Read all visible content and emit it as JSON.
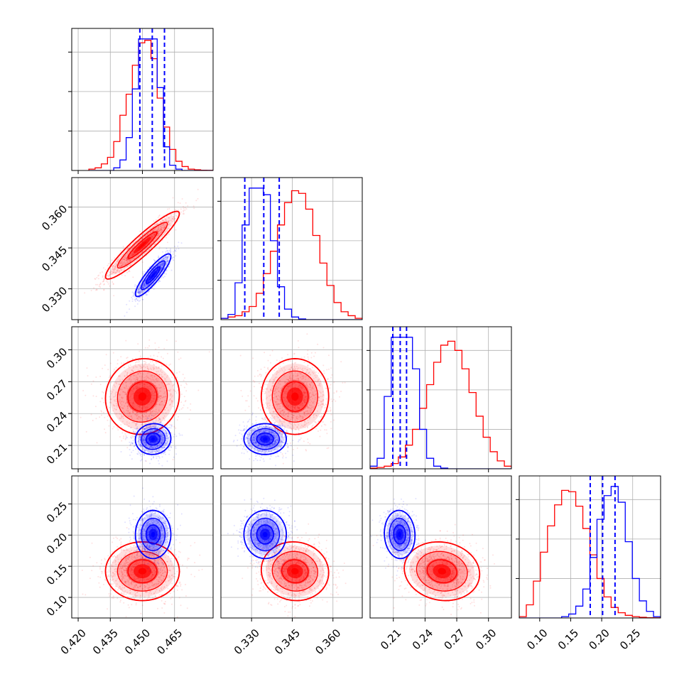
{
  "figure": {
    "type": "corner-plot",
    "grid": true
  },
  "colors": {
    "samples_a": "#ff0000",
    "samples_b": "#0000ff"
  },
  "chart_data": {
    "type": "corner",
    "parameters": [
      {
        "range": [
          0.417,
          0.483
        ],
        "ticks": [
          0.42,
          0.435,
          0.45,
          0.465
        ],
        "tick_labels": [
          "0.420",
          "0.435",
          "0.450",
          "0.465"
        ]
      },
      {
        "range": [
          0.3187,
          0.3708
        ],
        "ticks": [
          0.33,
          0.345,
          0.36
        ],
        "tick_labels": [
          "0.330",
          "0.345",
          "0.360"
        ]
      },
      {
        "range": [
          0.188,
          0.3217
        ],
        "ticks": [
          0.21,
          0.24,
          0.27,
          0.3
        ],
        "tick_labels": [
          "0.21",
          "0.24",
          "0.27",
          "0.30"
        ]
      },
      {
        "range": [
          0.067,
          0.295
        ],
        "ticks": [
          0.1,
          0.15,
          0.2,
          0.25
        ],
        "tick_labels": [
          "0.10",
          "0.15",
          "0.20",
          "0.25"
        ]
      }
    ],
    "series": [
      {
        "color": "#ff0000",
        "means": [
          0.45,
          0.346,
          0.256,
          0.142
        ],
        "stds": [
          0.0075,
          0.0054,
          0.0155,
          0.0205
        ],
        "correlations": {
          "0-1": 0.93,
          "0-2": 0.05,
          "0-3": 0.0,
          "1-2": 0.0,
          "1-3": -0.05,
          "2-3": -0.1
        },
        "histograms": [
          {
            "edges": [
              0.425,
              0.483
            ],
            "counts": [
              0.01,
              0.02,
              0.05,
              0.1,
              0.22,
              0.42,
              0.58,
              0.8,
              0.97,
              0.99,
              0.85,
              0.55,
              0.33,
              0.16,
              0.07,
              0.03,
              0.01,
              0.005,
              0.002,
              0.001
            ]
          },
          {
            "edges": [
              0.3187,
              0.3708
            ],
            "counts": [
              0.01,
              0.02,
              0.03,
              0.06,
              0.1,
              0.2,
              0.35,
              0.52,
              0.72,
              0.89,
              0.98,
              0.96,
              0.84,
              0.64,
              0.43,
              0.26,
              0.13,
              0.06,
              0.03,
              0.01
            ]
          },
          {
            "edges": [
              0.188,
              0.3217
            ],
            "counts": [
              0.005,
              0.01,
              0.02,
              0.04,
              0.09,
              0.18,
              0.3,
              0.46,
              0.64,
              0.81,
              0.94,
              0.97,
              0.9,
              0.76,
              0.58,
              0.4,
              0.24,
              0.13,
              0.06,
              0.02
            ]
          },
          {
            "edges": [
              0.067,
              0.295
            ],
            "counts": [
              0.01,
              0.1,
              0.28,
              0.5,
              0.7,
              0.86,
              0.97,
              0.96,
              0.85,
              0.68,
              0.48,
              0.3,
              0.16,
              0.08,
              0.04,
              0.02,
              0.01,
              0.005,
              0.002,
              0.001
            ]
          }
        ]
      },
      {
        "color": "#0000ff",
        "means": [
          0.455,
          0.335,
          0.216,
          0.201
        ],
        "stds": [
          0.0036,
          0.0034,
          0.0063,
          0.0168
        ],
        "correlations": {
          "0-1": 0.88,
          "0-2": 0.05,
          "0-3": 0.0,
          "1-2": 0.0,
          "1-3": 0.0,
          "2-3": -0.05
        },
        "histograms": [
          {
            "edges": [
              0.425,
              0.483
            ],
            "counts": [
              0,
              0,
              0,
              0,
              0.02,
              0.08,
              0.25,
              0.62,
              1.0,
              1.0,
              1.0,
              0.63,
              0.18,
              0.04,
              0.01,
              0,
              0,
              0,
              0,
              0
            ]
          },
          {
            "edges": [
              0.3187,
              0.3708
            ],
            "counts": [
              0.01,
              0.04,
              0.28,
              0.72,
              1.0,
              1.0,
              0.95,
              0.6,
              0.25,
              0.08,
              0.02,
              0.005,
              0,
              0,
              0,
              0,
              0,
              0,
              0,
              0
            ]
          },
          {
            "edges": [
              0.188,
              0.3217
            ],
            "counts": [
              0.02,
              0.08,
              0.55,
              1.0,
              1.0,
              1.0,
              0.76,
              0.3,
              0.08,
              0.02,
              0.005,
              0,
              0,
              0,
              0,
              0,
              0,
              0,
              0,
              0
            ]
          },
          {
            "edges": [
              0.067,
              0.295
            ],
            "counts": [
              0,
              0,
              0,
              0,
              0,
              0,
              0.01,
              0.03,
              0.09,
              0.22,
              0.46,
              0.75,
              0.93,
              1.0,
              0.88,
              0.58,
              0.3,
              0.13,
              0.05,
              0.01
            ]
          }
        ],
        "quantile_lines": [
          [
            0.4488,
            0.4546,
            0.4603
          ],
          [
            0.3275,
            0.3345,
            0.3402
          ],
          [
            0.2095,
            0.2165,
            0.2225
          ],
          [
            0.1815,
            0.2015,
            0.2215
          ]
        ]
      }
    ]
  }
}
